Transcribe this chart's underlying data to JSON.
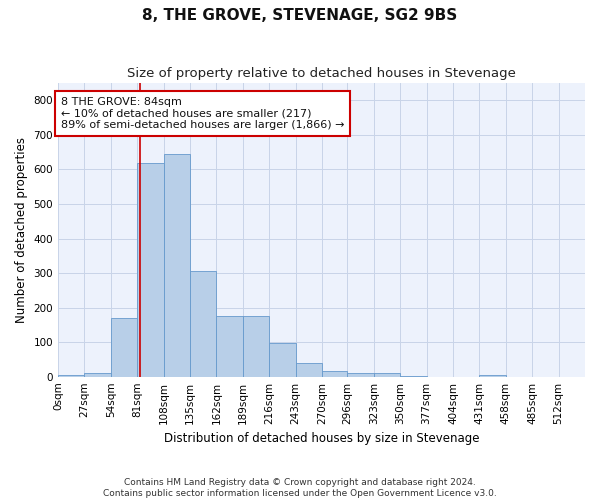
{
  "title": "8, THE GROVE, STEVENAGE, SG2 9BS",
  "subtitle": "Size of property relative to detached houses in Stevenage",
  "xlabel": "Distribution of detached houses by size in Stevenage",
  "ylabel": "Number of detached properties",
  "footer_line1": "Contains HM Land Registry data © Crown copyright and database right 2024.",
  "footer_line2": "Contains public sector information licensed under the Open Government Licence v3.0.",
  "annotation_line1": "8 THE GROVE: 84sqm",
  "annotation_line2": "← 10% of detached houses are smaller (217)",
  "annotation_line3": "89% of semi-detached houses are larger (1,866) →",
  "bar_color": "#b8cfe8",
  "bar_edge_color": "#6699cc",
  "grid_color": "#c8d4e8",
  "red_line_color": "#cc0000",
  "background_color": "#edf2fc",
  "bins": [
    0,
    27,
    54,
    81,
    108,
    135,
    162,
    189,
    216,
    243,
    270,
    296,
    323,
    350,
    377,
    404,
    431,
    458,
    485,
    512,
    539
  ],
  "bar_heights": [
    5,
    12,
    170,
    620,
    645,
    305,
    175,
    175,
    97,
    40,
    15,
    12,
    10,
    2,
    0,
    0,
    5,
    0,
    0,
    0
  ],
  "red_line_x": 84,
  "ylim": [
    0,
    850
  ],
  "yticks": [
    0,
    100,
    200,
    300,
    400,
    500,
    600,
    700,
    800
  ],
  "title_fontsize": 11,
  "subtitle_fontsize": 9.5,
  "axis_label_fontsize": 8.5,
  "tick_fontsize": 7.5,
  "annotation_fontsize": 8,
  "footer_fontsize": 6.5
}
